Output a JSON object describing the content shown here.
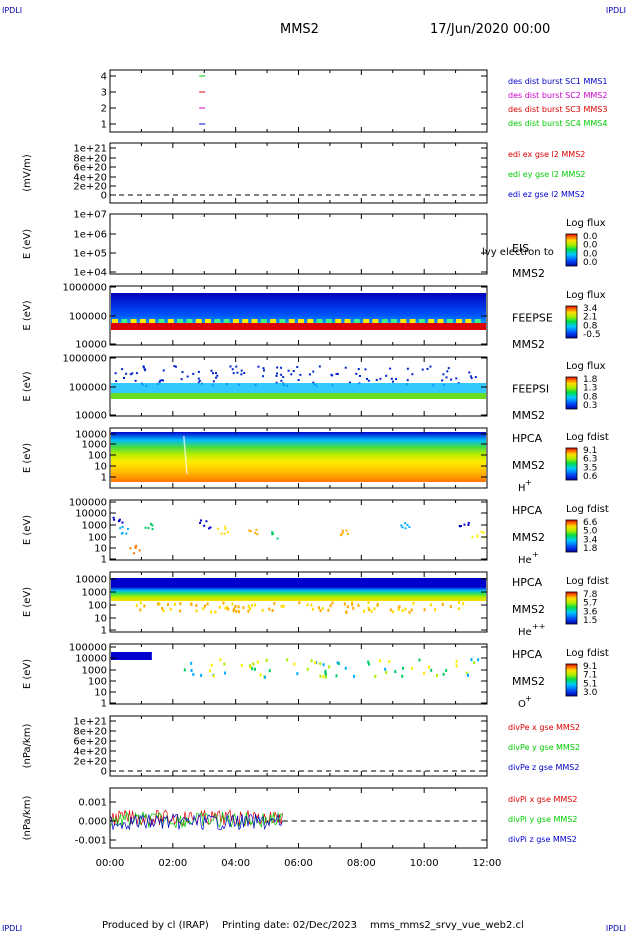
{
  "header": {
    "corner_tl": "IPDLI",
    "corner_tr": "IPDLI",
    "corner_bl": "IPDLI",
    "corner_br": "IPDLI",
    "title": "MMS2",
    "datetime": "17/Jun/2020 00:00"
  },
  "footer": {
    "produced_by": "Produced by cl (IRAP)",
    "printing_date": "Printing date: 02/Dec/2023",
    "filename": "mms_mms2_srvy_vue_web2.cl"
  },
  "colors": {
    "red": "#dd0000",
    "green": "#00cc00",
    "blue": "#0000cc",
    "magenta": "#cc00cc"
  },
  "chart_data": {
    "type": "line",
    "xlim": [
      "00:00",
      "12:00"
    ],
    "x_ticks": [
      "00:00",
      "02:00",
      "04:00",
      "06:00",
      "08:00",
      "10:00",
      "12:00"
    ],
    "panels": [
      {
        "id": "burst",
        "ylabel": "",
        "y_ticks": [
          "4",
          "3",
          "2",
          "1"
        ],
        "legend": [
          {
            "text": "des dist burst SC1 MMS1",
            "color": "#0000cc"
          },
          {
            "text": "des dist burst SC2 MMS2",
            "color": "#cc00cc"
          },
          {
            "text": "des dist burst SC3 MMS3",
            "color": "#dd0000"
          },
          {
            "text": "des dist burst SC4 MMS4",
            "color": "#00cc00"
          }
        ],
        "marks": [
          {
            "sc": 4,
            "time": "02:56",
            "color": "#00cc00"
          },
          {
            "sc": 3,
            "time": "02:56",
            "color": "#dd0000"
          },
          {
            "sc": 2,
            "time": "02:56",
            "color": "#cc00cc"
          },
          {
            "sc": 1,
            "time": "02:56",
            "color": "#0000cc"
          }
        ]
      },
      {
        "id": "edi-e",
        "ylabel": "(mV/m)",
        "y_ticks": [
          "1e+21",
          "8e+20",
          "6e+20",
          "4e+20",
          "2e+20",
          "0"
        ],
        "legend": [
          {
            "text": "edi ex gse l2 MMS2",
            "color": "#dd0000"
          },
          {
            "text": "edi ey gse l2 MMS2",
            "color": "#00cc00"
          },
          {
            "text": "edi ez gse l2 MMS2",
            "color": "#0000cc"
          }
        ]
      },
      {
        "id": "eis",
        "ylabel": "E (eV)",
        "y_ticks": [
          "1e+07",
          "1e+06",
          "1e+05",
          "1e+04"
        ],
        "instrument": [
          "EIS",
          "MMS2"
        ],
        "overlay": "high_rate_electron_to",
        "overlay_text": "lvy electron to",
        "colorbar": {
          "title": "Log flux",
          "labels": [
            "0.0",
            "0.0",
            "0.0",
            "0.0"
          ]
        }
      },
      {
        "id": "feepse",
        "ylabel": "E (eV)",
        "y_ticks": [
          "1000000",
          "100000",
          "10000"
        ],
        "instrument": [
          "FEEPSE",
          "MMS2"
        ],
        "colorbar": {
          "title": "Log flux",
          "labels": [
            "3.4",
            "2.1",
            "0.8",
            "-0.5"
          ]
        }
      },
      {
        "id": "feepsi",
        "ylabel": "E (eV)",
        "y_ticks": [
          "1000000",
          "100000",
          "10000"
        ],
        "instrument": [
          "FEEPSI",
          "MMS2"
        ],
        "colorbar": {
          "title": "Log flux",
          "labels": [
            "1.8",
            "1.3",
            "0.8",
            "0.3"
          ]
        }
      },
      {
        "id": "hpca-h",
        "ylabel": "E (eV)",
        "y_ticks": [
          "10000",
          "1000",
          "100",
          "10",
          "1"
        ],
        "instrument": [
          "HPCA",
          "MMS2"
        ],
        "species": "H",
        "species_sup": "+",
        "colorbar": {
          "title": "Log fdist",
          "labels": [
            "9.1",
            "6.3",
            "3.5",
            "0.6"
          ]
        }
      },
      {
        "id": "hpca-he",
        "ylabel": "E (eV)",
        "y_ticks": [
          "100000",
          "10000",
          "1000",
          "100",
          "10",
          "1"
        ],
        "instrument": [
          "HPCA",
          "MMS2"
        ],
        "species": "He",
        "species_sup": "+",
        "colorbar": {
          "title": "Log fdist",
          "labels": [
            "6.6",
            "5.0",
            "3.4",
            "1.8"
          ]
        }
      },
      {
        "id": "hpca-he2",
        "ylabel": "E (eV)",
        "y_ticks": [
          "10000",
          "1000",
          "100",
          "10",
          "1"
        ],
        "instrument": [
          "HPCA",
          "MMS2"
        ],
        "species": "He",
        "species_sup": "++",
        "colorbar": {
          "title": "Log fdist",
          "labels": [
            "7.8",
            "5.7",
            "3.6",
            "1.5"
          ]
        }
      },
      {
        "id": "hpca-o",
        "ylabel": "E (eV)",
        "y_ticks": [
          "100000",
          "10000",
          "1000",
          "100",
          "10",
          "1"
        ],
        "instrument": [
          "HPCA",
          "MMS2"
        ],
        "species": "O",
        "species_sup": "+",
        "colorbar": {
          "title": "Log fdist",
          "labels": [
            "9.1",
            "7.1",
            "5.1",
            "3.0"
          ]
        }
      },
      {
        "id": "divpe",
        "ylabel": "(nPa/km)",
        "y_ticks": [
          "1e+21",
          "8e+20",
          "6e+20",
          "4e+20",
          "2e+20",
          "0"
        ],
        "legend": [
          {
            "text": "divPe x gse MMS2",
            "color": "#dd0000"
          },
          {
            "text": "divPe y gse MMS2",
            "color": "#00cc00"
          },
          {
            "text": "divPe z gse MMS2",
            "color": "#0000cc"
          }
        ]
      },
      {
        "id": "divpi",
        "ylabel": "(nPa/km)",
        "y_ticks": [
          "0.001",
          "0.000",
          "-0.001"
        ],
        "ylim": [
          -0.0015,
          0.0015
        ],
        "data_end": "05:30",
        "legend": [
          {
            "text": "divPi x gse MMS2",
            "color": "#dd0000"
          },
          {
            "text": "divPi y gse MMS2",
            "color": "#00cc00"
          },
          {
            "text": "divPi z gse MMS2",
            "color": "#0000cc"
          }
        ]
      }
    ]
  }
}
